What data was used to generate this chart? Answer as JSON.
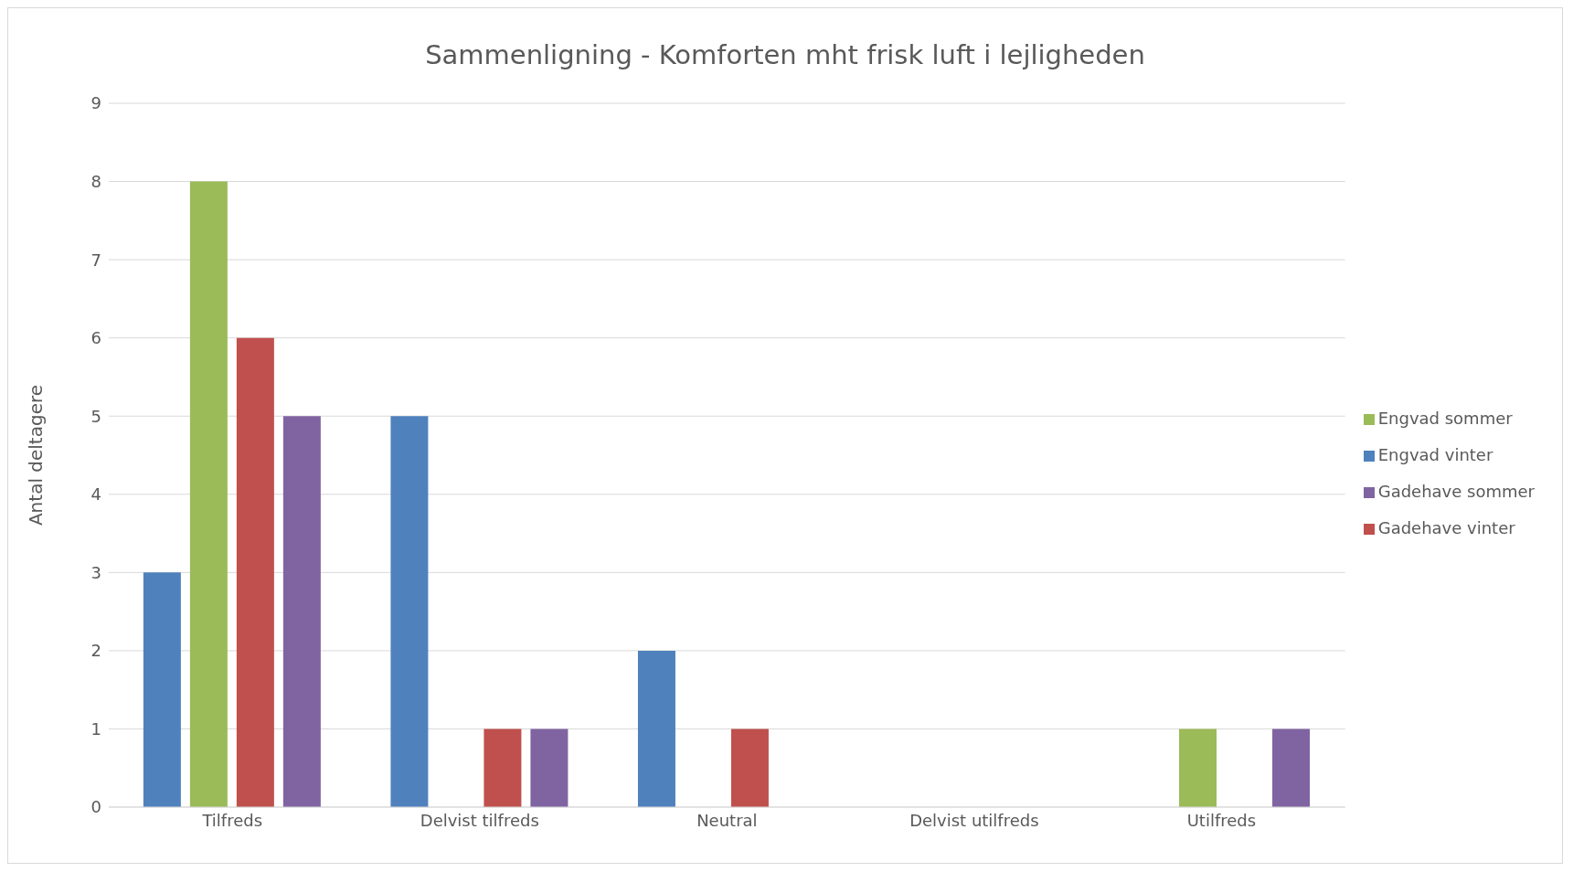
{
  "chart_data": {
    "type": "bar",
    "title": "Sammenligning - Komforten mht frisk luft i lejligheden",
    "ylabel": "Antal deltagere",
    "categories": [
      "Tilfreds",
      "Delvist tilfreds",
      "Neutral",
      "Delvist utilfreds",
      "Utilfreds"
    ],
    "series": [
      {
        "name": "Engvad vinter",
        "color": "#4f81bd",
        "values": [
          3,
          5,
          2,
          0,
          0
        ]
      },
      {
        "name": "Engvad sommer",
        "color": "#9bbb59",
        "values": [
          8,
          0,
          0,
          0,
          1
        ]
      },
      {
        "name": "Gadehave vinter",
        "color": "#c0504d",
        "values": [
          6,
          1,
          1,
          0,
          0
        ]
      },
      {
        "name": "Gadehave sommer",
        "color": "#8064a2",
        "values": [
          5,
          1,
          0,
          0,
          1
        ]
      }
    ],
    "ylim": [
      0,
      9
    ],
    "yticks": [
      0,
      1,
      2,
      3,
      4,
      5,
      6,
      7,
      8,
      9
    ],
    "grid": "y",
    "legend": "right"
  }
}
